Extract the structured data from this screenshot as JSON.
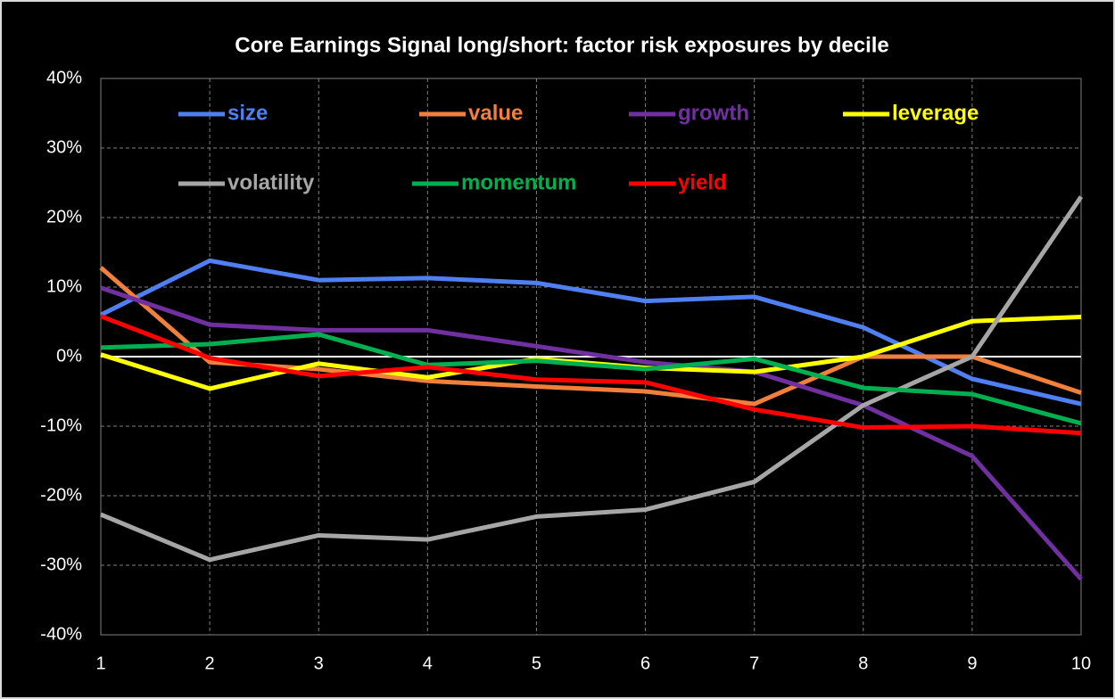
{
  "chart_data": {
    "type": "line",
    "title": "Core Earnings Signal long/short: factor risk exposures by decile",
    "x": [
      1,
      2,
      3,
      4,
      5,
      6,
      7,
      8,
      9,
      10
    ],
    "xlim": [
      1,
      10
    ],
    "xticks": [
      1,
      2,
      3,
      4,
      5,
      6,
      7,
      8,
      9,
      10
    ],
    "ylim": [
      -40,
      40
    ],
    "yticks": [
      {
        "value": -40,
        "label": "-40%"
      },
      {
        "value": -30,
        "label": "-30%"
      },
      {
        "value": -20,
        "label": "-20%"
      },
      {
        "value": -10,
        "label": "-10%"
      },
      {
        "value": 0,
        "label": "0%"
      },
      {
        "value": 10,
        "label": "10%"
      },
      {
        "value": 20,
        "label": "20%"
      },
      {
        "value": 30,
        "label": "30%"
      },
      {
        "value": 40,
        "label": "40%"
      }
    ],
    "grid": true,
    "legend": "top",
    "series": [
      {
        "name": "size",
        "color": "#4f7ff0",
        "values": [
          6,
          13.8,
          11,
          11.3,
          10.6,
          8,
          8.6,
          4.2,
          -3.2,
          -6.8
        ]
      },
      {
        "name": "value",
        "color": "#f0803c",
        "values": [
          12.8,
          -0.8,
          -1.8,
          -3.5,
          -4.3,
          -5,
          -6.8,
          0,
          0,
          -5.2
        ]
      },
      {
        "name": "growth",
        "color": "#7030a0",
        "values": [
          9.9,
          4.6,
          3.8,
          3.8,
          1.5,
          -0.8,
          -2.2,
          -7,
          -14.3,
          -32
        ]
      },
      {
        "name": "leverage",
        "color": "#ffff00",
        "values": [
          0.3,
          -4.6,
          -1,
          -3,
          -0.3,
          -1.6,
          -2.2,
          0,
          5.1,
          5.7
        ]
      },
      {
        "name": "volatility",
        "color": "#a6a6a6",
        "values": [
          -22.7,
          -29.2,
          -25.7,
          -26.3,
          -23,
          -22,
          -18,
          -7,
          0,
          23
        ]
      },
      {
        "name": "momentum",
        "color": "#00b050",
        "values": [
          1.3,
          1.8,
          3.2,
          -1.2,
          -0.6,
          -1.8,
          -0.3,
          -4.5,
          -5.4,
          -9.6
        ]
      },
      {
        "name": "yield",
        "color": "#ff0000",
        "values": [
          5.8,
          -0.2,
          -2.8,
          -1.5,
          -3.3,
          -3.7,
          -7.6,
          -10.2,
          -10,
          -11
        ]
      }
    ]
  }
}
